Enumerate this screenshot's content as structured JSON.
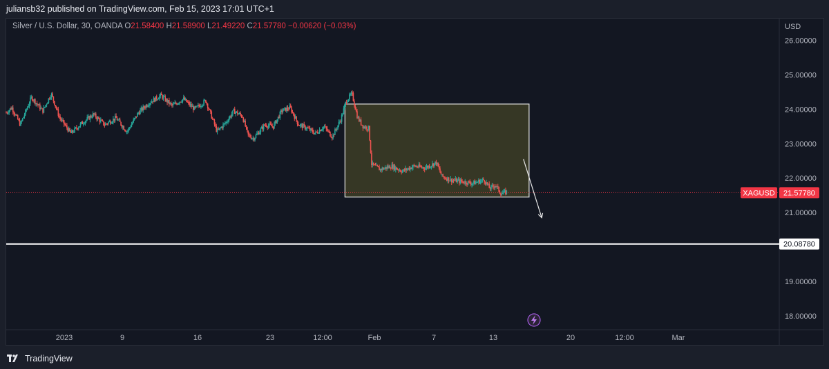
{
  "header": {
    "publisher_text": "juliansb32 published on TradingView.com, Feb 15, 2023 17:01 UTC+1"
  },
  "legend": {
    "symbol_text": "Silver / U.S. Dollar, 30, OANDA",
    "open_label": "O",
    "open": "21.58400",
    "high_label": "H",
    "high": "21.58900",
    "low_label": "L",
    "low": "21.49220",
    "close_label": "C",
    "close": "21.57780",
    "change": "−0.00620 (−0.03%)"
  },
  "footer": {
    "brand": "TradingView"
  },
  "colors": {
    "background": "#131722",
    "up": "#26a69a",
    "down": "#ef5350",
    "box_fill": "#3d3d26",
    "price_tag": "#f23645"
  },
  "chart_data": {
    "type": "candlestick",
    "symbol": "XAGUSD",
    "currency": "USD",
    "y_ticks": [
      "26.00000",
      "25.00000",
      "24.00000",
      "23.00000",
      "22.00000",
      "21.00000",
      "19.00000",
      "18.00000"
    ],
    "ylim": [
      17.6,
      26.65
    ],
    "x_ticks": [
      "2023",
      "9",
      "16",
      "23",
      "12:00",
      "Feb",
      "7",
      "13",
      "20",
      "12:00",
      "Mar"
    ],
    "last_price": {
      "label": "XAGUSD",
      "value": "21.57780",
      "num": 21.5778
    },
    "horizontal_line": {
      "value": "20.08780",
      "num": 20.0878
    },
    "price_path": [
      [
        0,
        23.9
      ],
      [
        0.02,
        24.05
      ],
      [
        0.05,
        23.55
      ],
      [
        0.09,
        24.35
      ],
      [
        0.13,
        23.95
      ],
      [
        0.16,
        24.45
      ],
      [
        0.19,
        23.75
      ],
      [
        0.23,
        23.3
      ],
      [
        0.27,
        23.6
      ],
      [
        0.31,
        23.85
      ],
      [
        0.35,
        23.55
      ],
      [
        0.39,
        23.75
      ],
      [
        0.43,
        23.35
      ],
      [
        0.47,
        23.9
      ],
      [
        0.51,
        24.2
      ],
      [
        0.55,
        24.4
      ],
      [
        0.59,
        24.1
      ],
      [
        0.63,
        24.3
      ],
      [
        0.67,
        24.0
      ],
      [
        0.71,
        24.25
      ],
      [
        0.75,
        23.35
      ],
      [
        0.78,
        23.6
      ],
      [
        0.81,
        23.95
      ],
      [
        0.84,
        23.8
      ],
      [
        0.86,
        23.25
      ],
      [
        0.88,
        23.15
      ],
      [
        0.9,
        23.35
      ],
      [
        0.92,
        23.55
      ],
      [
        0.95,
        23.5
      ],
      [
        0.98,
        23.95
      ],
      [
        1.01,
        24.05
      ],
      [
        1.04,
        23.55
      ],
      [
        1.07,
        23.45
      ],
      [
        1.1,
        23.3
      ],
      [
        1.13,
        23.5
      ],
      [
        1.16,
        23.2
      ],
      [
        1.19,
        23.7
      ],
      [
        1.21,
        24.25
      ],
      [
        1.23,
        24.45
      ],
      [
        1.25,
        23.75
      ],
      [
        1.27,
        23.5
      ],
      [
        1.29,
        23.45
      ],
      [
        1.3,
        22.4
      ],
      [
        1.33,
        22.25
      ],
      [
        1.37,
        22.35
      ],
      [
        1.41,
        22.2
      ],
      [
        1.45,
        22.35
      ],
      [
        1.49,
        22.3
      ],
      [
        1.53,
        22.45
      ],
      [
        1.55,
        22.05
      ],
      [
        1.58,
        21.95
      ],
      [
        1.62,
        21.9
      ],
      [
        1.66,
        21.85
      ],
      [
        1.7,
        21.95
      ],
      [
        1.72,
        21.7
      ],
      [
        1.74,
        21.8
      ],
      [
        1.76,
        21.55
      ],
      [
        1.78,
        21.6
      ]
    ],
    "drawings": [
      {
        "type": "rectangle",
        "x0": 1.205,
        "x1": 1.86,
        "y0": 21.45,
        "y1": 24.15
      },
      {
        "type": "arrow",
        "x0": 1.84,
        "y0": 22.55,
        "x1": 1.905,
        "y1": 20.85
      }
    ],
    "x_domain": [
      0,
      2.75
    ]
  }
}
